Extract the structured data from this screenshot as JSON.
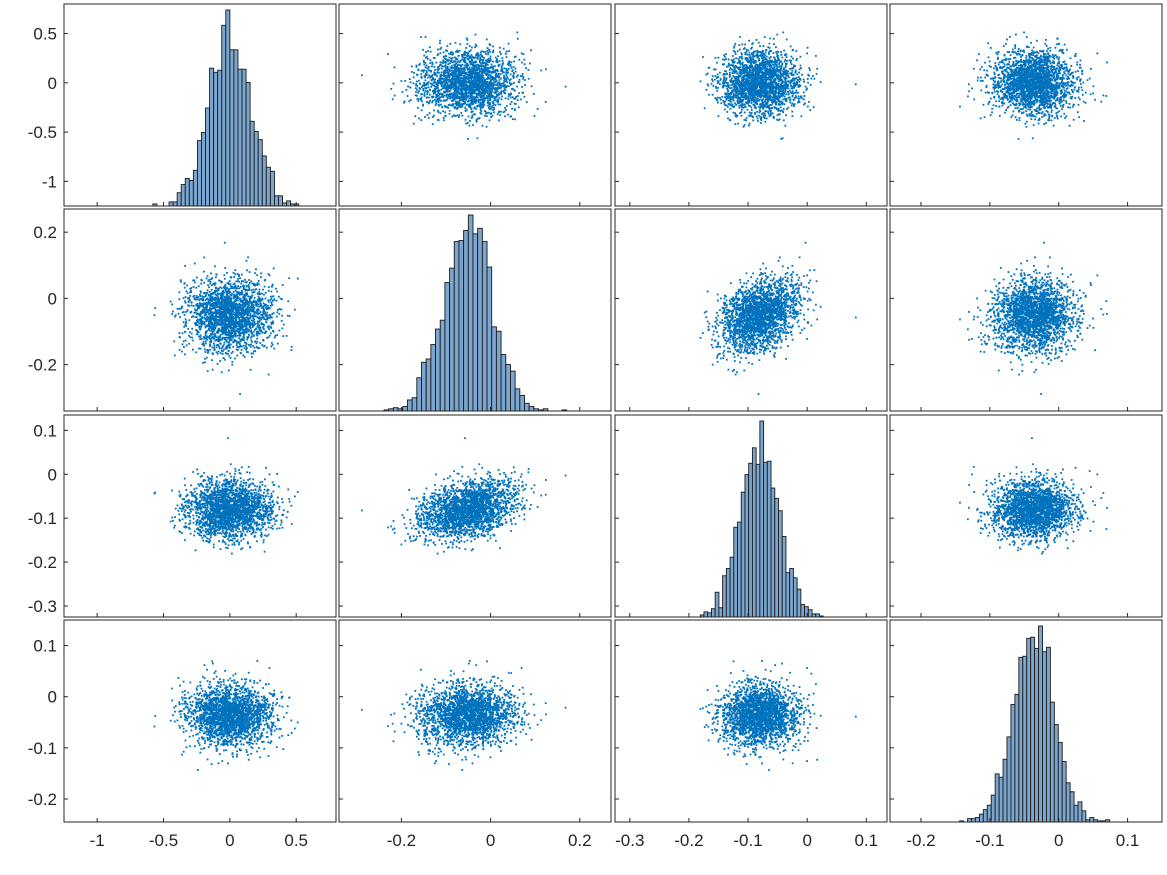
{
  "chart_data": {
    "type": "scatter",
    "title": "",
    "layout": "scatter-plot-matrix",
    "n_vars": 4,
    "diagonal": "histogram",
    "off_diagonal": "scatter",
    "marker_color": "#0072bd",
    "hist_fill": "#7aa6cf",
    "hist_edge": "#1a1a1a",
    "grid": false,
    "legend": "none",
    "variables": [
      {
        "mean": 0.0,
        "sd": 0.16,
        "range": [
          -1.25,
          0.8
        ]
      },
      {
        "mean": -0.05,
        "sd": 0.055,
        "range": [
          -0.34,
          0.27
        ]
      },
      {
        "mean": -0.08,
        "sd": 0.033,
        "range": [
          -0.325,
          0.135
        ]
      },
      {
        "mean": -0.035,
        "sd": 0.03,
        "range": [
          -0.245,
          0.15
        ]
      }
    ],
    "correlations": [
      [
        1.0,
        0.02,
        -0.01,
        0.0
      ],
      [
        0.02,
        1.0,
        0.35,
        0.05
      ],
      [
        -0.01,
        0.35,
        1.0,
        0.02
      ],
      [
        0.0,
        0.05,
        0.02,
        1.0
      ]
    ],
    "row_ticks": [
      [
        "0.5",
        "0",
        "-0.5",
        "-1"
      ],
      [
        "0.2",
        "0",
        "-0.2"
      ],
      [
        "0.1",
        "0",
        "-0.1",
        "-0.2",
        "-0.3"
      ],
      [
        "0.1",
        "0",
        "-0.1",
        "-0.2"
      ]
    ],
    "row_tick_values": [
      [
        0.5,
        0,
        -0.5,
        -1
      ],
      [
        0.2,
        0,
        -0.2
      ],
      [
        0.1,
        0,
        -0.1,
        -0.2,
        -0.3
      ],
      [
        0.1,
        0,
        -0.1,
        -0.2
      ]
    ],
    "col_ticks": [
      [
        "-1",
        "-0.5",
        "0",
        "0.5"
      ],
      [
        "-0.2",
        "0",
        "0.2"
      ],
      [
        "-0.3",
        "-0.2",
        "-0.1",
        "0",
        "0.1"
      ],
      [
        "-0.2",
        "-0.1",
        "0",
        "0.1"
      ]
    ],
    "col_tick_values": [
      [
        -1,
        -0.5,
        0,
        0.5
      ],
      [
        -0.2,
        0,
        0.2
      ],
      [
        -0.3,
        -0.2,
        -0.1,
        0,
        0.1
      ],
      [
        -0.2,
        -0.1,
        0,
        0.1
      ]
    ]
  }
}
